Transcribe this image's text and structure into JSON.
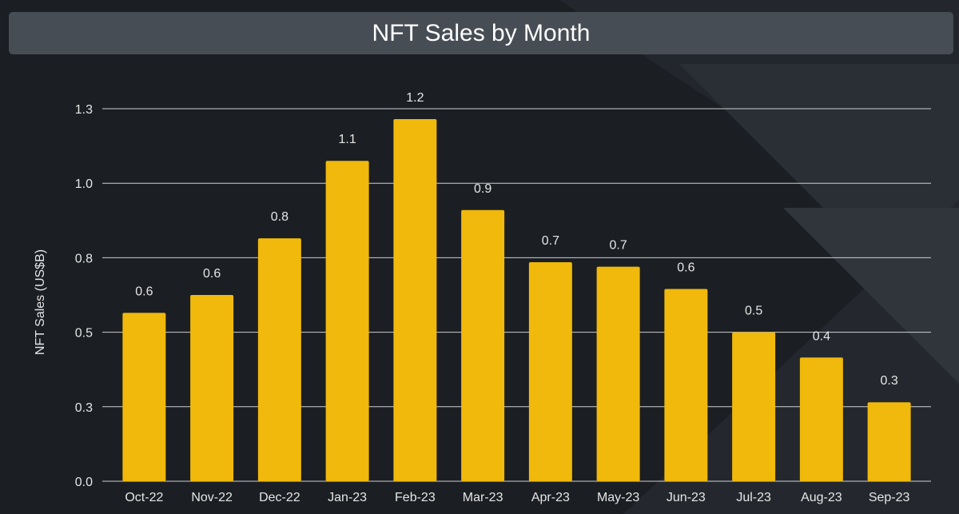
{
  "chart_data": {
    "type": "bar",
    "title": "NFT Sales by Month",
    "xlabel": "",
    "ylabel": "NFT Sales (US$B)",
    "categories": [
      "Oct-22",
      "Nov-22",
      "Dec-22",
      "Jan-23",
      "Feb-23",
      "Mar-23",
      "Apr-23",
      "May-23",
      "Jun-23",
      "Jul-23",
      "Aug-23",
      "Sep-23"
    ],
    "values": [
      0.565,
      0.625,
      0.815,
      1.075,
      1.215,
      0.91,
      0.735,
      0.72,
      0.645,
      0.5,
      0.415,
      0.265
    ],
    "data_labels": [
      "0.6",
      "0.6",
      "0.8",
      "1.1",
      "1.2",
      "0.9",
      "0.7",
      "0.7",
      "0.6",
      "0.5",
      "0.4",
      "0.3"
    ],
    "yticks": [
      0,
      0.25,
      0.5,
      0.75,
      1.0,
      1.25
    ],
    "ytick_labels": [
      "0.0",
      "0.3",
      "0.5",
      "0.8",
      "1.0",
      "1.3"
    ],
    "ylim": [
      0,
      1.25
    ],
    "grid": true,
    "bar_color": "#f0b90b",
    "grid_color": "#cfcfcf",
    "background_color": "#1b1e23"
  }
}
